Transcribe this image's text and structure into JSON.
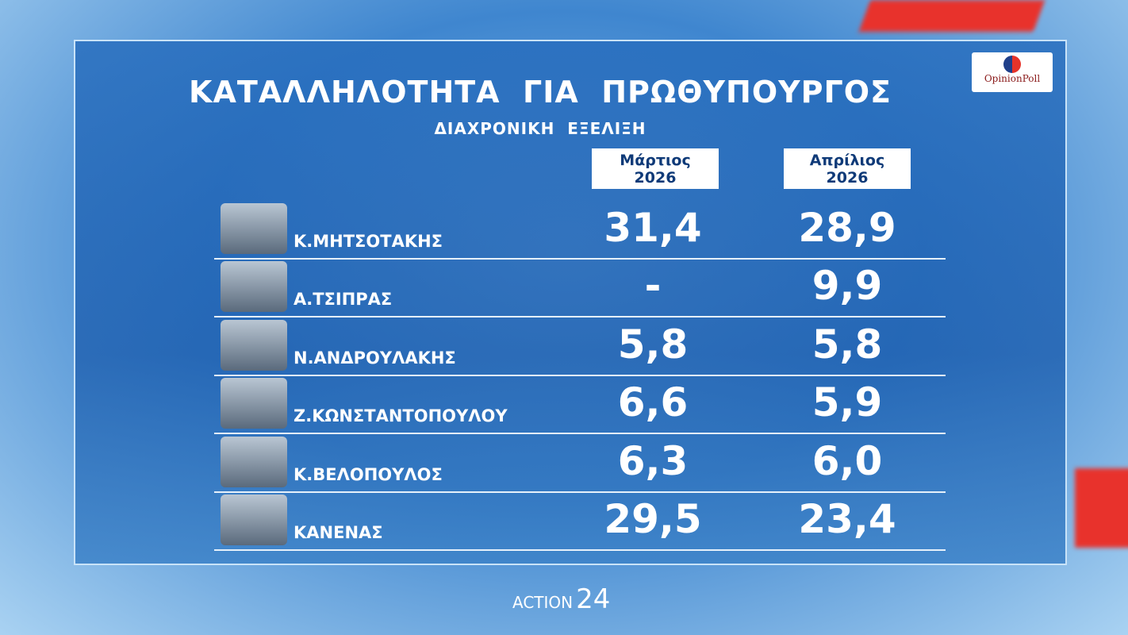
{
  "header": {
    "title": "ΚΑΤΑΛΛΗΛΟΤΗΤΑ  ΓΙΑ  ΠΡΩΘΥΠΟΥΡΓΟΣ",
    "subtitle": "ΔΙΑΧΡΟΝΙΚΗ  ΕΞΕΛΙΞΗ",
    "logo": "OpinionPoll"
  },
  "table": {
    "columns": [
      [
        "Μάρτιος",
        "2026"
      ],
      [
        "Απρίλιος",
        "2026"
      ]
    ],
    "rows": [
      [
        "Κ.ΜΗΤΣΟΤΑΚΗΣ",
        "31,4",
        "28,9"
      ],
      [
        "Α.ΤΣΙΠΡΑΣ",
        "-",
        "9,9"
      ],
      [
        "Ν.ΑΝΔΡΟΥΛΑΚΗΣ",
        "5,8",
        "5,8"
      ],
      [
        "Ζ.ΚΩΝΣΤΑΝΤΟΠΟΥΛΟΥ",
        "6,6",
        "5,9"
      ],
      [
        "Κ.ΒΕΛΟΠΟΥΛΟΣ",
        "6,3",
        "6,0"
      ],
      [
        "ΚΑΝΕΝΑΣ",
        "29,5",
        "23,4"
      ]
    ]
  },
  "footer": {
    "brand": "ACTION",
    "number": "24"
  }
}
